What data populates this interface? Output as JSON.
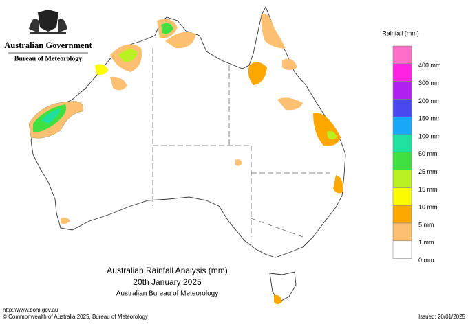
{
  "header": {
    "government": "Australian Government",
    "bureau": "Bureau of Meteorology"
  },
  "legend": {
    "title": "Rainfall (mm)",
    "items": [
      {
        "label": "400 mm",
        "color": "#ff6ec7"
      },
      {
        "label": "300 mm",
        "color": "#ff22e0"
      },
      {
        "label": "200 mm",
        "color": "#b020f0"
      },
      {
        "label": "150 mm",
        "color": "#4848f0"
      },
      {
        "label": "100 mm",
        "color": "#18a8f8"
      },
      {
        "label": "50 mm",
        "color": "#20e0a0"
      },
      {
        "label": "25 mm",
        "color": "#40e040"
      },
      {
        "label": "15 mm",
        "color": "#b8f020"
      },
      {
        "label": "10 mm",
        "color": "#fcfc00"
      },
      {
        "label": "5 mm",
        "color": "#fca800"
      },
      {
        "label": "1 mm",
        "color": "#fcc070"
      },
      {
        "label": "0 mm",
        "color": "#ffffff"
      }
    ]
  },
  "title": {
    "line1": "Australian Rainfall Analysis (mm)",
    "line2": "20th January 2025",
    "line3": "Australian Bureau of Meteorology"
  },
  "footer": {
    "url": "http://www.bom.gov.au",
    "copyright": "© Commonwealth of Australia 2025, Bureau of Meteorology",
    "issued": "Issued: 20/01/2025"
  }
}
